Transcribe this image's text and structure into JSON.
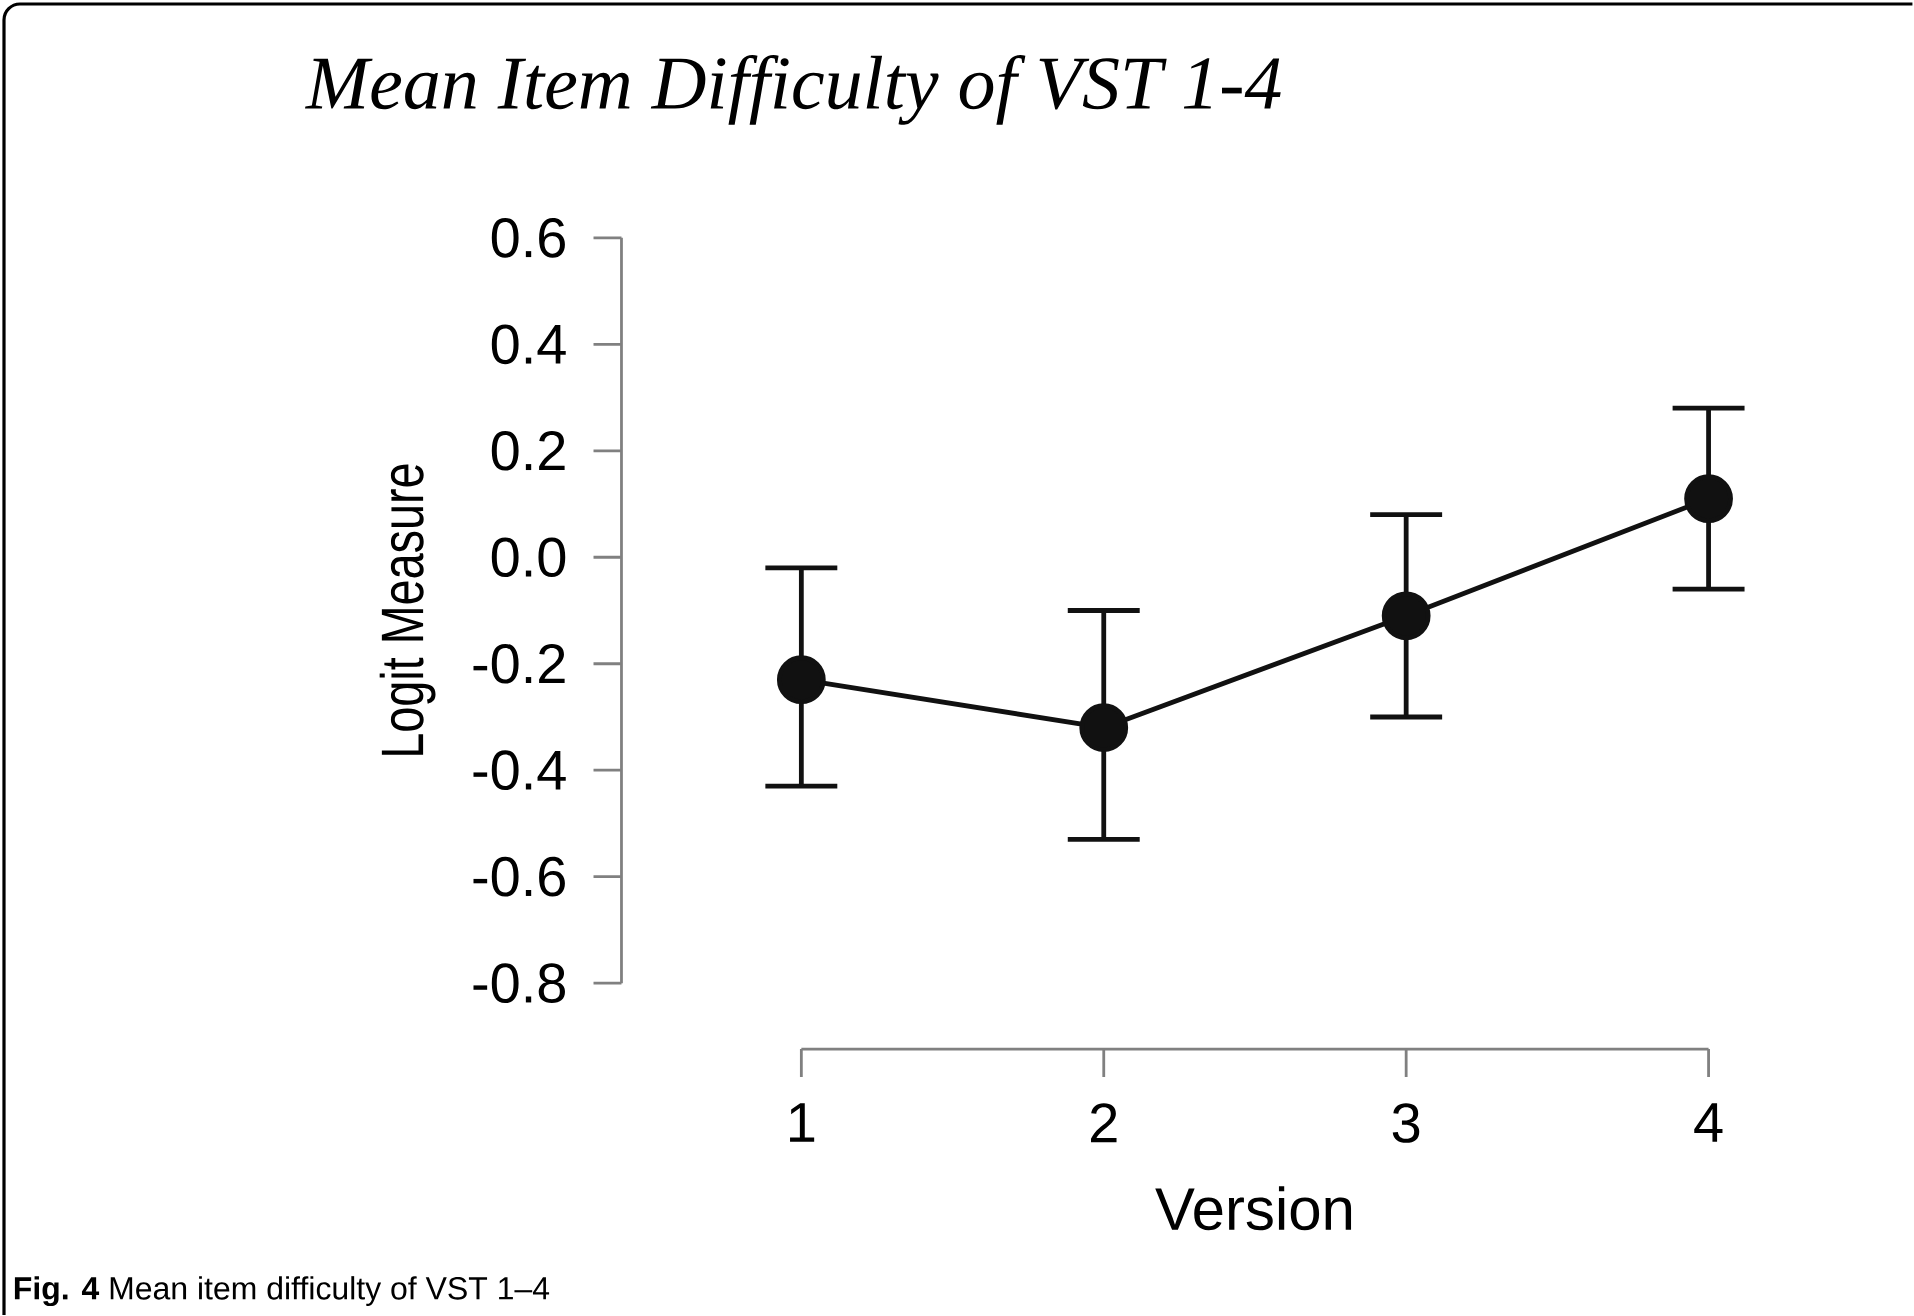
{
  "chart_data": {
    "type": "line",
    "title": "Mean Item Difficulty of VST 1-4",
    "xlabel": "Version",
    "ylabel": "Logit Measure",
    "annotations": [
      "**Fig. 4** Mean item difficulty of VST 1–4"
    ],
    "x": [
      1,
      2,
      3,
      4
    ],
    "series": [
      {
        "color": "#111111",
        "values": [
          -0.23,
          -0.32,
          -0.11,
          0.11
        ],
        "errors": [
          [
            -0.43,
            -0.02
          ],
          [
            -0.53,
            -0.1
          ],
          [
            -0.3,
            0.08
          ],
          [
            -0.06,
            0.28
          ]
        ]
      }
    ],
    "xlim": [
      1,
      4
    ],
    "ylim": [
      -0.8,
      0.6
    ],
    "xticks": [
      1,
      2,
      3,
      4
    ],
    "yticks": [
      {
        "value": 0.6,
        "label": "0.6"
      },
      {
        "value": 0.4,
        "label": "0.4"
      },
      {
        "value": 0.2,
        "label": "0.2"
      },
      {
        "value": 0.0,
        "label": "0.0"
      },
      {
        "value": -0.2,
        "label": "-0.2"
      },
      {
        "value": -0.4,
        "label": "-0.4"
      },
      {
        "value": -0.6,
        "label": "-0.6"
      },
      {
        "value": -0.8,
        "label": "-0.8"
      }
    ],
    "marker": "circle",
    "line_style": "solid"
  }
}
